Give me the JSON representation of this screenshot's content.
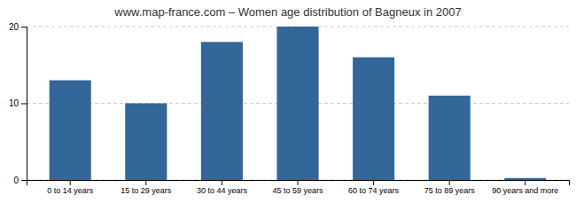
{
  "chart_data": {
    "type": "bar",
    "title": "www.map-france.com – Women age distribution of Bagneux in 2007",
    "categories": [
      "0 to 14 years",
      "15 to 29 years",
      "30 to 44 years",
      "45 to 59 years",
      "60 to 74 years",
      "75 to 89 years",
      "90 years and more"
    ],
    "values": [
      13,
      10,
      18,
      20,
      16,
      11,
      0.25
    ],
    "color": "#336699",
    "ylim": [
      0,
      20
    ],
    "yticks": [
      0,
      10,
      20
    ],
    "grid": true
  }
}
